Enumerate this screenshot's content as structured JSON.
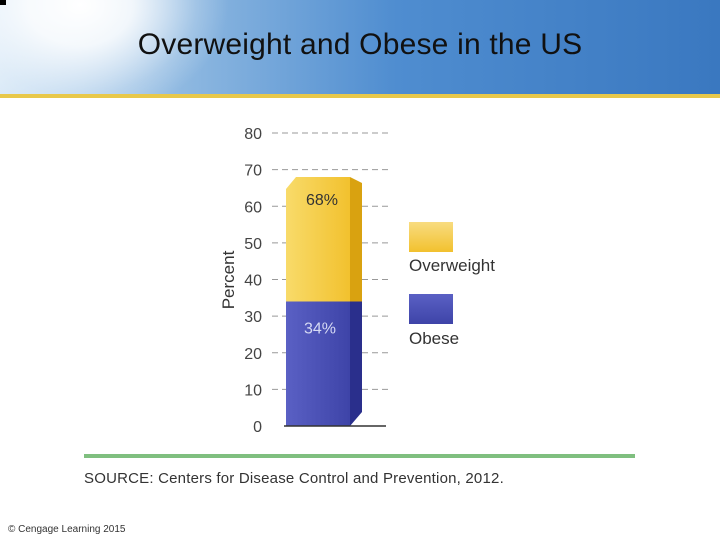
{
  "slide": {
    "title": "Overweight and Obese in the US",
    "source": "SOURCE: Centers for Disease Control and Prevention, 2012.",
    "copyright": "© Cengage Learning 2015"
  },
  "colors": {
    "overweight": "#f2c12e",
    "obese": "#3e44a8",
    "rule": "#7fbf7f",
    "accent": "#e8c84a"
  },
  "chart_data": {
    "type": "bar",
    "title": "",
    "xlabel": "",
    "ylabel": "Percent",
    "ylim": [
      0,
      80
    ],
    "yticks": [
      0,
      10,
      20,
      30,
      40,
      50,
      60,
      70,
      80
    ],
    "grid": "dashed",
    "categories": [
      ""
    ],
    "series": [
      {
        "name": "Overweight",
        "values": [
          68
        ],
        "label": "68%"
      },
      {
        "name": "Obese",
        "values": [
          34
        ],
        "label": "34%"
      }
    ],
    "legend": "right"
  }
}
